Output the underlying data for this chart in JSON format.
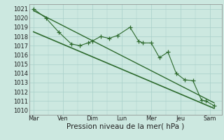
{
  "bg_color": "#cce8e0",
  "grid_color": "#a8cfc8",
  "line_color": "#2d6a2d",
  "ylabel_values": [
    1010,
    1011,
    1012,
    1013,
    1014,
    1015,
    1016,
    1017,
    1018,
    1019,
    1020,
    1021
  ],
  "xtick_labels": [
    "Mar",
    "Ven",
    "Dim",
    "Lun",
    "Mer",
    "Jeu",
    "Sam"
  ],
  "xtick_positions": [
    0,
    1,
    2,
    3,
    4,
    5,
    6
  ],
  "xlabel": "Pression niveau de la mer( hPa )",
  "ylim": [
    1009.5,
    1021.5
  ],
  "xlim": [
    -0.15,
    6.4
  ],
  "series1_x": [
    0.0,
    0.42,
    0.85,
    1.28,
    1.57,
    1.85,
    2.0,
    2.28,
    2.57,
    2.85,
    3.28,
    3.57,
    3.71,
    4.0,
    4.28,
    4.57,
    4.85,
    5.14,
    5.42,
    5.71,
    5.85,
    6.14
  ],
  "series1_y": [
    1021.0,
    1020.0,
    1018.5,
    1017.2,
    1017.0,
    1017.3,
    1017.5,
    1018.0,
    1017.8,
    1018.1,
    1019.0,
    1017.5,
    1017.3,
    1017.3,
    1015.7,
    1016.3,
    1014.0,
    1013.3,
    1013.2,
    1011.1,
    1011.0,
    1010.5
  ],
  "trend1_x": [
    0.0,
    6.14
  ],
  "trend1_y": [
    1020.8,
    1010.8
  ],
  "trend2_x": [
    0.0,
    6.14
  ],
  "trend2_y": [
    1018.5,
    1010.2
  ],
  "title_fontsize": 7,
  "tick_fontsize": 6,
  "xlabel_fontsize": 7.5
}
